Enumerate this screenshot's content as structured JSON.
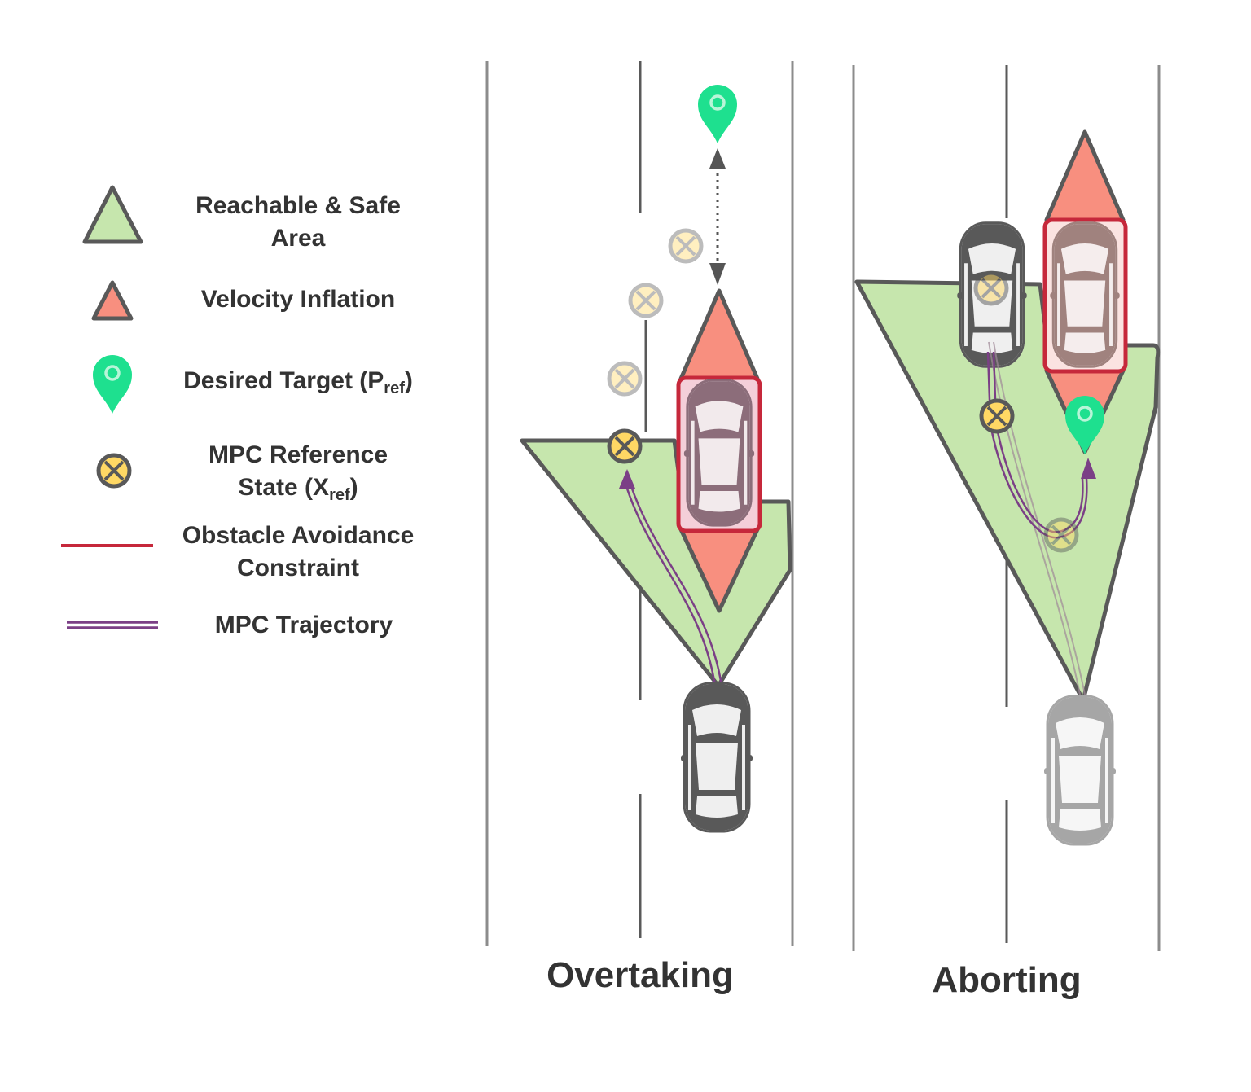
{
  "legend": {
    "reachable": {
      "line1": "Reachable & Safe",
      "line2": "Area"
    },
    "velocity": {
      "label": "Velocity Inflation"
    },
    "target": {
      "label": "Desired Target (P",
      "sub": "ref",
      "close": ")"
    },
    "reference": {
      "line1": "MPC Reference",
      "line2": "State (X",
      "sub": "ref",
      "close": ")"
    },
    "obstacle": {
      "line1": "Obstacle Avoidance",
      "line2": "Constraint"
    },
    "trajectory": {
      "label": "MPC Trajectory"
    }
  },
  "scenes": {
    "overtaking": {
      "title": "Overtaking"
    },
    "aborting": {
      "title": "Aborting"
    }
  },
  "colors": {
    "safe_area": "#c6e6ad",
    "velocity": "#f88f7f",
    "target": "#1ee08f",
    "reference": "#ffd864",
    "obstacle": "#c6283b",
    "trajectory": "#7b3f86",
    "outline": "#595959"
  },
  "icons": [
    "triangle-icon",
    "map-pin-icon",
    "crossed-circle-icon",
    "car-icon"
  ]
}
